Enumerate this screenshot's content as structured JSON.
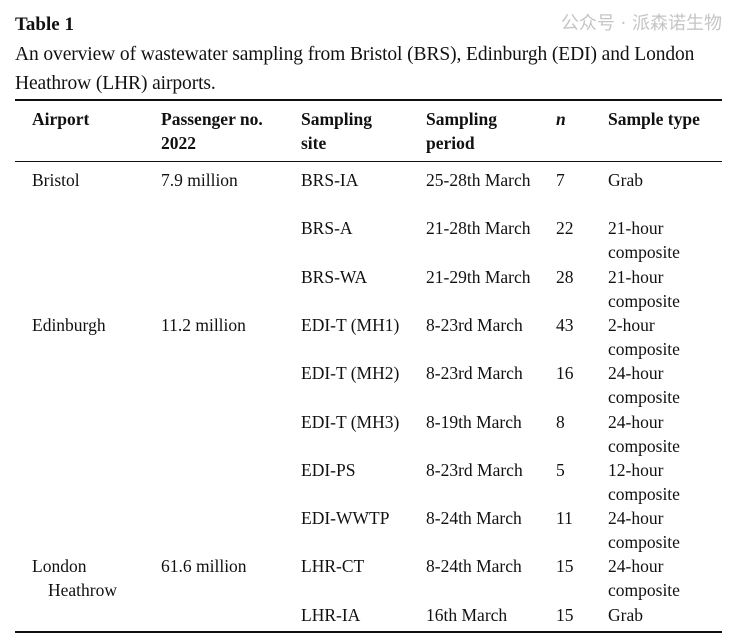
{
  "title": "Table 1",
  "caption": "An overview of wastewater sampling from Bristol (BRS), Edinburgh (EDI) and London Heathrow (LHR) airports.",
  "headers": [
    "Airport",
    "Passenger no. 2022",
    "Sampling site",
    "Sampling period",
    "n",
    "Sample type"
  ],
  "rows": [
    [
      "Bristol",
      "7.9 million",
      "BRS-IA",
      "25-28th March",
      "7",
      "Grab"
    ],
    [
      "",
      "",
      "BRS-A",
      "21-28th March",
      "22",
      "21-hour composite"
    ],
    [
      "",
      "",
      "BRS-WA",
      "21-29th March",
      "28",
      "21-hour composite"
    ],
    [
      "Edinburgh",
      "11.2 million",
      "EDI-T (MH1)",
      "8-23rd March",
      "43",
      "2-hour composite"
    ],
    [
      "",
      "",
      "EDI-T (MH2)",
      "8-23rd March",
      "16",
      "24-hour composite"
    ],
    [
      "",
      "",
      "EDI-T (MH3)",
      "8-19th March",
      "8",
      "24-hour composite"
    ],
    [
      "",
      "",
      "EDI-PS",
      "8-23rd March",
      "5",
      "12-hour composite"
    ],
    [
      "",
      "",
      "EDI-WWTP",
      "8-24th March",
      "11",
      "24-hour composite"
    ],
    [
      "London Heathrow",
      "61.6 million",
      "LHR-CT",
      "8-24th March",
      "15",
      "24-hour composite"
    ],
    [
      "",
      "",
      "LHR-IA",
      "16th March",
      "15",
      "Grab"
    ]
  ],
  "watermark": "公众号 · 派森诺生物"
}
